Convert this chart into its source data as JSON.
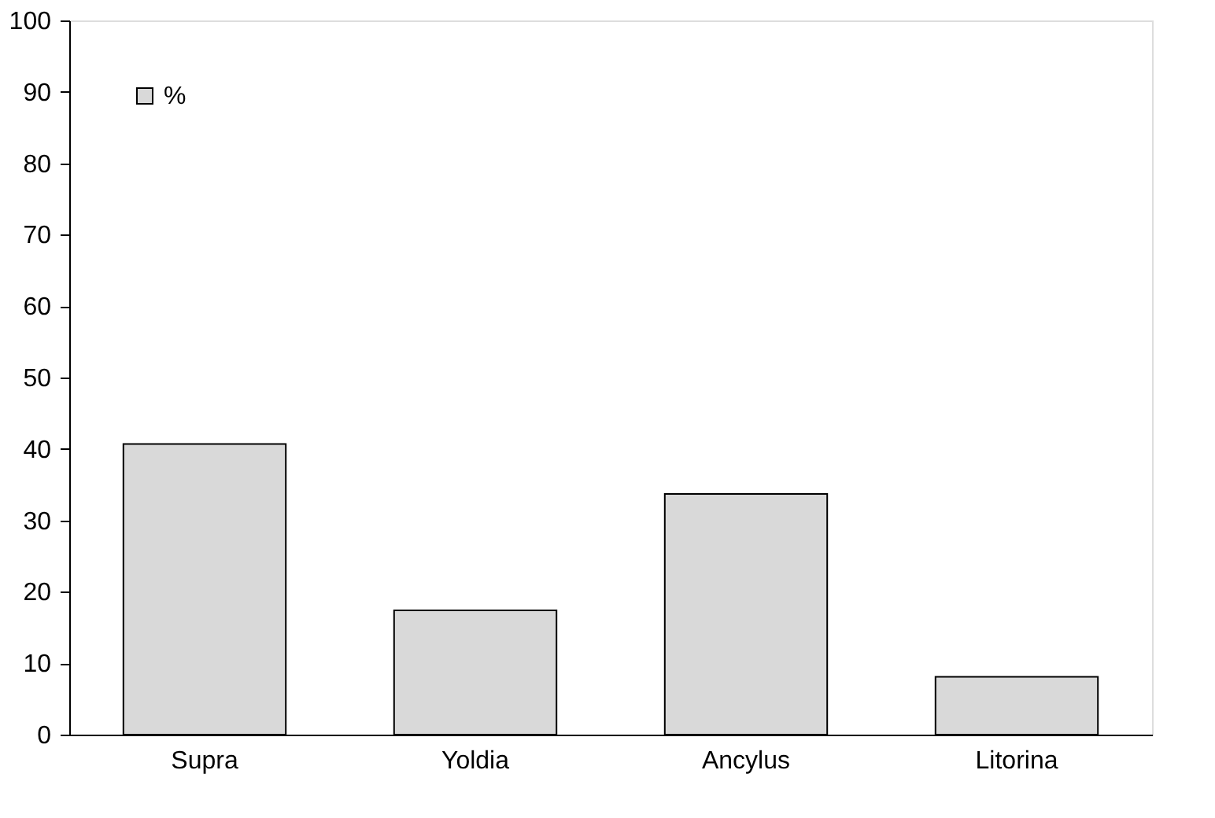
{
  "chart_data": {
    "type": "bar",
    "categories": [
      "Supra",
      "Yoldia",
      "Ancylus",
      "Litorina"
    ],
    "series": [
      {
        "name": "%",
        "color": "#d9d9d9",
        "values": [
          40.7,
          17.4,
          33.7,
          8.1
        ]
      }
    ],
    "ylim": [
      0,
      100
    ],
    "yticks": [
      0,
      10,
      20,
      30,
      40,
      50,
      60,
      70,
      80,
      90,
      100
    ],
    "grid": false,
    "legend": "top left"
  }
}
